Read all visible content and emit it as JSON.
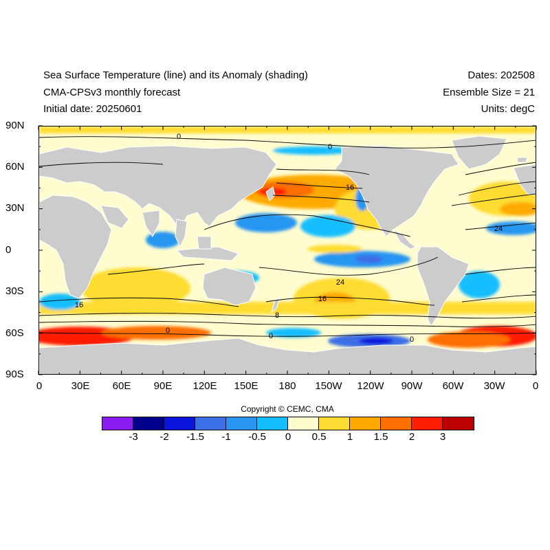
{
  "header": {
    "title": "Sea Surface Temperature (line) and its Anomaly (shading)",
    "model": "CMA-CPSv3 monthly forecast",
    "initial_date": "Initial date: 20250601",
    "dates": "Dates: 202508",
    "ensemble": "Ensemble Size = 21",
    "units": "Units: degC"
  },
  "axes": {
    "lat_labels": [
      "90N",
      "60N",
      "30N",
      "0",
      "30S",
      "60S",
      "90S"
    ],
    "lon_labels": [
      "0",
      "30E",
      "60E",
      "90E",
      "120E",
      "150E",
      "180",
      "150W",
      "120W",
      "90W",
      "60W",
      "30W",
      "0"
    ]
  },
  "contour_labels": [
    "0",
    "0",
    "16",
    "24",
    "24",
    "16",
    "16",
    "8",
    "0",
    "0",
    "0"
  ],
  "copyright": "Copyright © CEMC, CMA",
  "colorbar": {
    "labels": [
      "-3",
      "-2",
      "-1.5",
      "-1",
      "-0.5",
      "0",
      "0.5",
      "1",
      "1.5",
      "2",
      "3"
    ],
    "colors": [
      "#8a1ef0",
      "#00008c",
      "#0a14dc",
      "#3c6ee6",
      "#2896f0",
      "#14beff",
      "#fffccf",
      "#ffdc32",
      "#ffaa00",
      "#ff6e00",
      "#ff1e00",
      "#be0000"
    ]
  },
  "chart_data": {
    "type": "heatmap",
    "title": "Sea Surface Temperature (line) and its Anomaly (shading)",
    "subtitle": "CMA-CPSv3 monthly forecast",
    "xlim": [
      0,
      360
    ],
    "ylim": [
      -90,
      90
    ],
    "contour_levels": [
      0,
      8,
      16,
      24
    ],
    "anomaly_levels": [
      -3,
      -2,
      -1.5,
      -1,
      -0.5,
      0,
      0.5,
      1,
      1.5,
      2,
      3
    ],
    "land_color": "#cccccc",
    "anomaly_regions": [
      {
        "name": "Kuroshio Extension warm",
        "lon": [
          140,
          200
        ],
        "lat": [
          30,
          45
        ],
        "anomaly": 2
      },
      {
        "name": "North Pacific warm",
        "lon": [
          150,
          230
        ],
        "lat": [
          30,
          55
        ],
        "anomaly": 1
      },
      {
        "name": "Eastern equatorial Pacific cool",
        "lon": [
          195,
          270
        ],
        "lat": [
          -10,
          5
        ],
        "anomaly": -1
      },
      {
        "name": "Southern Ocean warm (Atlantic/Indian)",
        "lon": [
          0,
          80
        ],
        "lat": [
          -70,
          -55
        ],
        "anomaly": 2
      },
      {
        "name": "South Atlantic warm",
        "lon": [
          295,
          360
        ],
        "lat": [
          -70,
          -50
        ],
        "anomaly": 2
      },
      {
        "name": "South Pacific cool",
        "lon": [
          220,
          270
        ],
        "lat": [
          -70,
          -60
        ],
        "anomaly": -2
      },
      {
        "name": "North Atlantic warm",
        "lon": [
          290,
          360
        ],
        "lat": [
          30,
          60
        ],
        "anomaly": 1
      },
      {
        "name": "Western Pacific cool",
        "lon": [
          120,
          190
        ],
        "lat": [
          10,
          25
        ],
        "anomaly": -0.5
      },
      {
        "name": "Indian Ocean warm",
        "lon": [
          50,
          100
        ],
        "lat": [
          -40,
          -10
        ],
        "anomaly": 0.5
      }
    ]
  }
}
